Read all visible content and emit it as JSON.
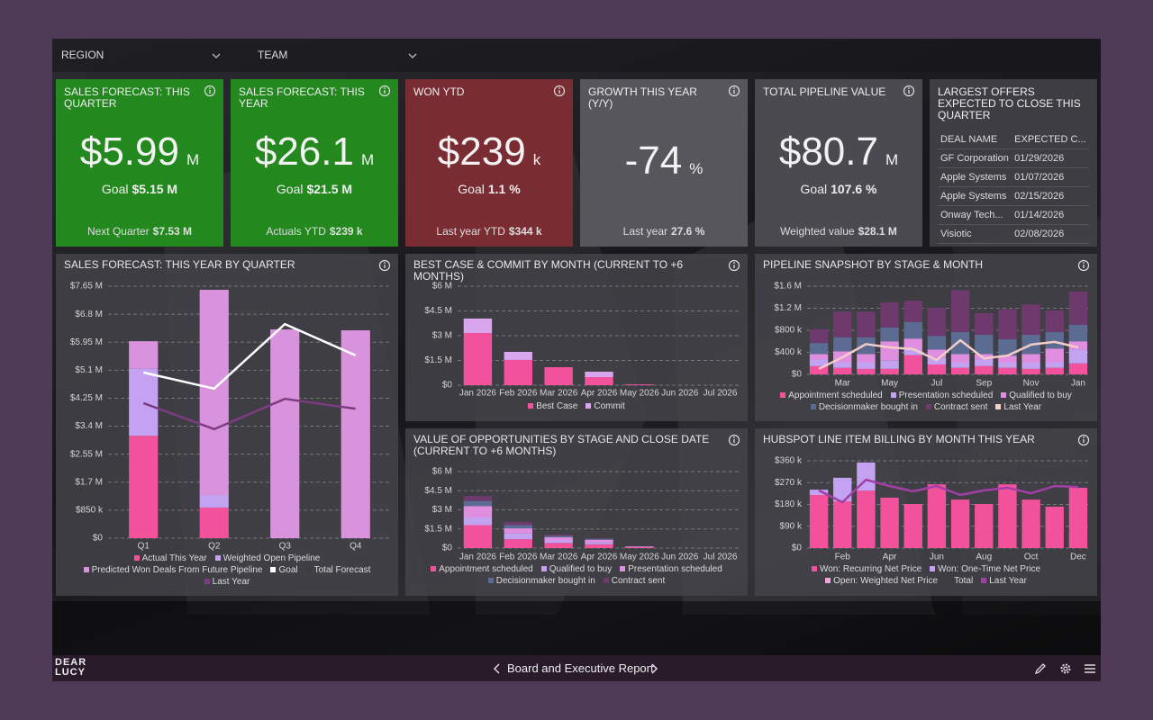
{
  "header": {
    "filters": [
      "REGION",
      "TEAM"
    ]
  },
  "tiles": [
    {
      "title": "SALES FORECAST: THIS QUARTER",
      "value": "$5.99",
      "unit": "M",
      "goal_label": "Goal",
      "goal_value": "$5.15 M",
      "foot_label": "Next Quarter",
      "foot_value": "$7.53 M",
      "color": "#23891f"
    },
    {
      "title": "SALES FORECAST: THIS YEAR",
      "value": "$26.1",
      "unit": "M",
      "goal_label": "Goal",
      "goal_value": "$21.5 M",
      "foot_label": "Actuals YTD",
      "foot_value": "$239 k",
      "color": "#23891f"
    },
    {
      "title": "WON YTD",
      "value": "$239",
      "unit": "k",
      "goal_label": "Goal",
      "goal_value": "1.1 %",
      "foot_label": "Last year YTD",
      "foot_value": "$344 k",
      "color": "#7a2c33"
    },
    {
      "title": "GROWTH THIS YEAR (Y/Y)",
      "value": "-74",
      "unit": "%",
      "foot_label": "Last year",
      "foot_value": "27.6 %",
      "color": "#56565c"
    },
    {
      "title": "TOTAL PIPELINE VALUE",
      "value": "$80.7",
      "unit": "M",
      "goal_label": "Goal",
      "goal_value": "107.6 %",
      "foot_label": "Weighted value",
      "foot_value": "$28.1 M",
      "color": "#4a4a50"
    }
  ],
  "offers": {
    "title": "LARGEST OFFERS EXPECTED TO CLOSE THIS QUARTER",
    "columns": [
      "DEAL NAME",
      "EXPECTED C..."
    ],
    "rows": [
      [
        "GF Corporation",
        "01/29/2026"
      ],
      [
        "Apple Systems",
        "01/07/2026"
      ],
      [
        "Apple Systems",
        "02/15/2026"
      ],
      [
        "Onway Tech...",
        "01/14/2026"
      ],
      [
        "Visiotic",
        "02/08/2026"
      ]
    ]
  },
  "charts": [
    {
      "type": "bar",
      "stacked": true,
      "grid": true,
      "title": "SALES FORECAST: THIS YEAR BY QUARTER",
      "categories": [
        "Q1",
        "Q2",
        "Q3",
        "Q4"
      ],
      "ylim": [
        0,
        7.65
      ],
      "yticks": [
        {
          "value": 0,
          "label": "$0"
        },
        {
          "value": 0.85,
          "label": "$850 k"
        },
        {
          "value": 1.7,
          "label": "$1.7 M"
        },
        {
          "value": 2.55,
          "label": "$2.55 M"
        },
        {
          "value": 3.4,
          "label": "$3.4 M"
        },
        {
          "value": 4.25,
          "label": "$4.25 M"
        },
        {
          "value": 5.1,
          "label": "$5.1 M"
        },
        {
          "value": 5.95,
          "label": "$5.95 M"
        },
        {
          "value": 6.8,
          "label": "$6.8 M"
        },
        {
          "value": 7.65,
          "label": "$7.65 M"
        }
      ],
      "series": [
        {
          "name": "Actual This Year",
          "type": "bar",
          "color": "#f2519b",
          "values": [
            3.11,
            0.93,
            0,
            0
          ]
        },
        {
          "name": "Weighted Open Pipeline",
          "type": "bar",
          "color": "#c4a2f2",
          "values": [
            2.03,
            0.38,
            0,
            0
          ]
        },
        {
          "name": "Predicted Won Deals From Future Pipeline",
          "type": "bar",
          "color": "#d993dc",
          "values": [
            0.84,
            6.23,
            6.34,
            6.31
          ]
        },
        {
          "name": "Goal",
          "type": "line",
          "color": "#ffffff",
          "values": [
            5.03,
            4.54,
            6.5,
            5.55
          ]
        },
        {
          "name": "Total Forecast",
          "type": "line",
          "color": "#3c3c42",
          "values": [
            null,
            null,
            null,
            null
          ]
        },
        {
          "name": "Last Year",
          "type": "line",
          "color": "#7b3d82",
          "values": [
            4.1,
            3.31,
            4.23,
            3.93
          ]
        }
      ]
    },
    {
      "type": "bar",
      "stacked": true,
      "grid": true,
      "title": "BEST CASE & COMMIT BY MONTH (CURRENT TO +6 MONTHS)",
      "categories": [
        "Jan 2026",
        "Feb 2026",
        "Mar 2026",
        "Apr 2026",
        "May 2026",
        "Jun 2026",
        "Jul 2026"
      ],
      "ylim": [
        0,
        6
      ],
      "yticks": [
        {
          "value": 0,
          "label": "$0"
        },
        {
          "value": 1.5,
          "label": "$1.5 M"
        },
        {
          "value": 3,
          "label": "$3 M"
        },
        {
          "value": 4.5,
          "label": "$4.5 M"
        },
        {
          "value": 6,
          "label": "$6 M"
        }
      ],
      "series": [
        {
          "name": "Best Case",
          "type": "bar",
          "color": "#f2519b",
          "values": [
            3.16,
            1.53,
            1.09,
            0.49,
            0.05,
            0,
            0
          ]
        },
        {
          "name": "Commit",
          "type": "bar",
          "color": "#d8a6ec",
          "values": [
            0.88,
            0.49,
            0,
            0.33,
            0,
            0,
            0
          ]
        }
      ]
    },
    {
      "type": "bar",
      "stacked": true,
      "grid": true,
      "title": "PIPELINE SNAPSHOT BY STAGE & MONTH",
      "categories": [
        null,
        "Mar",
        null,
        "May",
        null,
        "Jul",
        null,
        "Sep",
        null,
        "Nov",
        null,
        "Jan"
      ],
      "ylim": [
        0,
        1.6
      ],
      "yticks": [
        {
          "value": 0,
          "label": "$0"
        },
        {
          "value": 0.4,
          "label": "$400 k"
        },
        {
          "value": 0.8,
          "label": "$800 k"
        },
        {
          "value": 1.2,
          "label": "$1.2 M"
        },
        {
          "value": 1.6,
          "label": "$1.6 M"
        }
      ],
      "series": [
        {
          "name": "Appointment scheduled",
          "type": "bar",
          "color": "#f2519b",
          "values": [
            0.15,
            0.12,
            0.1,
            0.1,
            0.35,
            0.18,
            0.12,
            0.15,
            0.12,
            0.1,
            0.12,
            0.2
          ]
        },
        {
          "name": "Presentation scheduled",
          "type": "bar",
          "color": "#c4a2f2",
          "values": [
            0.12,
            0.1,
            0.12,
            0.15,
            0.1,
            0.12,
            0.1,
            0.12,
            0.1,
            0.12,
            0.1,
            0.25
          ]
        },
        {
          "name": "Qualified to buy",
          "type": "bar",
          "color": "#e08fe0",
          "values": [
            0.1,
            0.2,
            0.15,
            0.35,
            0.2,
            0.15,
            0.15,
            0.1,
            0.12,
            0.15,
            0.25,
            0.15
          ]
        },
        {
          "name": "Decisionmaker bought in",
          "type": "bar",
          "color": "#5b6b92",
          "values": [
            0.2,
            0.25,
            0.3,
            0.25,
            0.3,
            0.25,
            0.4,
            0.35,
            0.3,
            0.35,
            0.3,
            0.3
          ]
        },
        {
          "name": "Contract sent",
          "type": "bar",
          "color": "#6e3a6e",
          "values": [
            0.25,
            0.47,
            0.47,
            0.46,
            0.39,
            0.51,
            0.76,
            0.39,
            0.54,
            0.55,
            0.39,
            0.6
          ]
        },
        {
          "name": "Last Year",
          "type": "line",
          "color": "#f3cdc8",
          "values": [
            0.1,
            0.31,
            0.55,
            0.49,
            0.46,
            0.26,
            0.62,
            0.29,
            0.34,
            0.54,
            0.59,
            0.49
          ]
        }
      ]
    },
    {
      "type": "bar",
      "stacked": true,
      "grid": true,
      "title": "VALUE OF OPPORTUNITIES BY STAGE AND CLOSE DATE (CURRENT TO +6 MONTHS)",
      "categories": [
        "Jan 2026",
        "Feb 2026",
        "Mar 2026",
        "Apr 2026",
        "May 2026",
        "Jun 2026",
        "Jul 2026"
      ],
      "ylim": [
        0,
        6
      ],
      "yticks": [
        {
          "value": 0,
          "label": "$0"
        },
        {
          "value": 1.5,
          "label": "$1.5 M"
        },
        {
          "value": 3,
          "label": "$3 M"
        },
        {
          "value": 4.5,
          "label": "$4.5 M"
        },
        {
          "value": 6,
          "label": "$6 M"
        }
      ],
      "series": [
        {
          "name": "Appointment scheduled",
          "type": "bar",
          "color": "#f2519b",
          "values": [
            1.8,
            0.7,
            0.4,
            0.3,
            0.08,
            0,
            0
          ]
        },
        {
          "name": "Qualified to buy",
          "type": "bar",
          "color": "#c4a2f2",
          "values": [
            0.6,
            0.45,
            0.2,
            0.15,
            0.03,
            0,
            0
          ]
        },
        {
          "name": "Presentation scheduled",
          "type": "bar",
          "color": "#e08fe0",
          "values": [
            0.9,
            0.4,
            0.25,
            0.2,
            0.03,
            0,
            0
          ]
        },
        {
          "name": "Decisionmaker bought in",
          "type": "bar",
          "color": "#5b6b92",
          "values": [
            0.4,
            0.25,
            0.11,
            0.08,
            0,
            0,
            0
          ]
        },
        {
          "name": "Contract sent",
          "type": "bar",
          "color": "#6e3a6e",
          "values": [
            0.39,
            0.25,
            0.1,
            0.05,
            0,
            0,
            0
          ]
        }
      ]
    },
    {
      "type": "bar",
      "stacked": true,
      "grid": true,
      "title": "HUBSPOT LINE ITEM BILLING BY MONTH THIS YEAR",
      "categories": [
        null,
        "Feb",
        null,
        "Apr",
        null,
        "Jun",
        null,
        "Aug",
        null,
        "Oct",
        null,
        "Dec"
      ],
      "ylim": [
        0,
        360
      ],
      "yticks": [
        {
          "value": 0,
          "label": "$0"
        },
        {
          "value": 90,
          "label": "$90 k"
        },
        {
          "value": 180,
          "label": "$180 k"
        },
        {
          "value": 270,
          "label": "$270 k"
        },
        {
          "value": 360,
          "label": "$360 k"
        }
      ],
      "series": [
        {
          "name": "Won: Recurring Net Price",
          "type": "bar",
          "color": "#f2519b",
          "values": [
            219,
            193,
            237,
            208,
            182,
            263,
            200,
            182,
            263,
            200,
            171,
            249
          ]
        },
        {
          "name": "Won: One-Time Net Price",
          "type": "bar",
          "color": "#c4a2f2",
          "values": [
            22,
            97,
            116,
            0,
            0,
            0,
            0,
            0,
            0,
            0,
            0,
            0
          ]
        },
        {
          "name": "Open: Weighted Net Price",
          "type": "bar",
          "color": "#f0a6d6",
          "values": [
            0,
            0,
            0,
            0,
            0,
            0,
            0,
            0,
            0,
            0,
            0,
            0
          ]
        },
        {
          "name": "Total",
          "type": "line",
          "color": "#3c3c42",
          "values": [
            null,
            null,
            null,
            null,
            null,
            null,
            null,
            null,
            null,
            null,
            null,
            null
          ]
        },
        {
          "name": "Last Year",
          "type": "line",
          "color": "#a23fa6",
          "values": [
            238,
            189,
            282,
            256,
            234,
            256,
            219,
            238,
            249,
            226,
            256,
            252
          ]
        }
      ]
    }
  ],
  "footer": {
    "logo": [
      "DEAR",
      "LUCY"
    ],
    "report": "Board and Executive Report"
  }
}
